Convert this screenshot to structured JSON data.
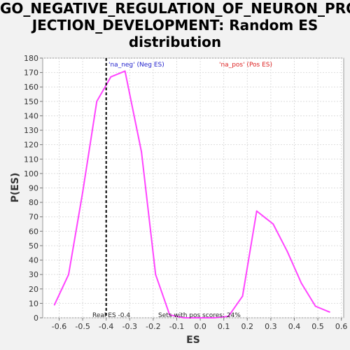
{
  "title_lines": [
    "GO_NEGATIVE_REGULATION_OF_NEURON_PRO",
    "JECTION_DEVELOPMENT: Random ES",
    "distribution"
  ],
  "chart_data": {
    "type": "line",
    "xlabel": "ES",
    "ylabel": "P(ES)",
    "xlim": [
      -0.67,
      0.61
    ],
    "ylim": [
      0,
      180
    ],
    "x_ticks": [
      -0.6,
      -0.5,
      -0.4,
      -0.3,
      -0.2,
      -0.1,
      0.0,
      0.1,
      0.2,
      0.3,
      0.4,
      0.5,
      0.6
    ],
    "x_tick_labels": [
      "-0.6",
      "-0.5",
      "-0.4",
      "-0.3",
      "-0.2",
      "-0.1",
      "0.0",
      "0.1",
      "0.2",
      "0.3",
      "0.4",
      "0.5",
      "0.6"
    ],
    "y_ticks": [
      0,
      10,
      20,
      30,
      40,
      50,
      60,
      70,
      80,
      90,
      100,
      110,
      120,
      130,
      140,
      150,
      160,
      170,
      180
    ],
    "grid": true,
    "series": [
      {
        "color": "#ff44ff",
        "x": [
          -0.62,
          -0.56,
          -0.5,
          -0.44,
          -0.38,
          -0.32,
          -0.25,
          -0.19,
          -0.13,
          -0.07,
          0.0,
          0.06,
          0.12,
          0.18,
          0.24,
          0.31,
          0.37,
          0.43,
          0.49,
          0.55
        ],
        "y": [
          9,
          30,
          87,
          150,
          167,
          171,
          115,
          30,
          2,
          0,
          0,
          0,
          1,
          15,
          74,
          65,
          46,
          24,
          8,
          4
        ]
      }
    ],
    "real_es": -0.4,
    "real_es_color": "#000000",
    "legend": [
      {
        "label": "'na_neg' (Neg ES)",
        "color": "#2222cc",
        "position": "top-left"
      },
      {
        "label": "'na_pos' (Pos ES)",
        "color": "#dd2222",
        "position": "top-right"
      }
    ],
    "annotations": {
      "real_es": "Real ES -0.4",
      "pos_scores": "Sets with pos scores: 24%"
    }
  }
}
